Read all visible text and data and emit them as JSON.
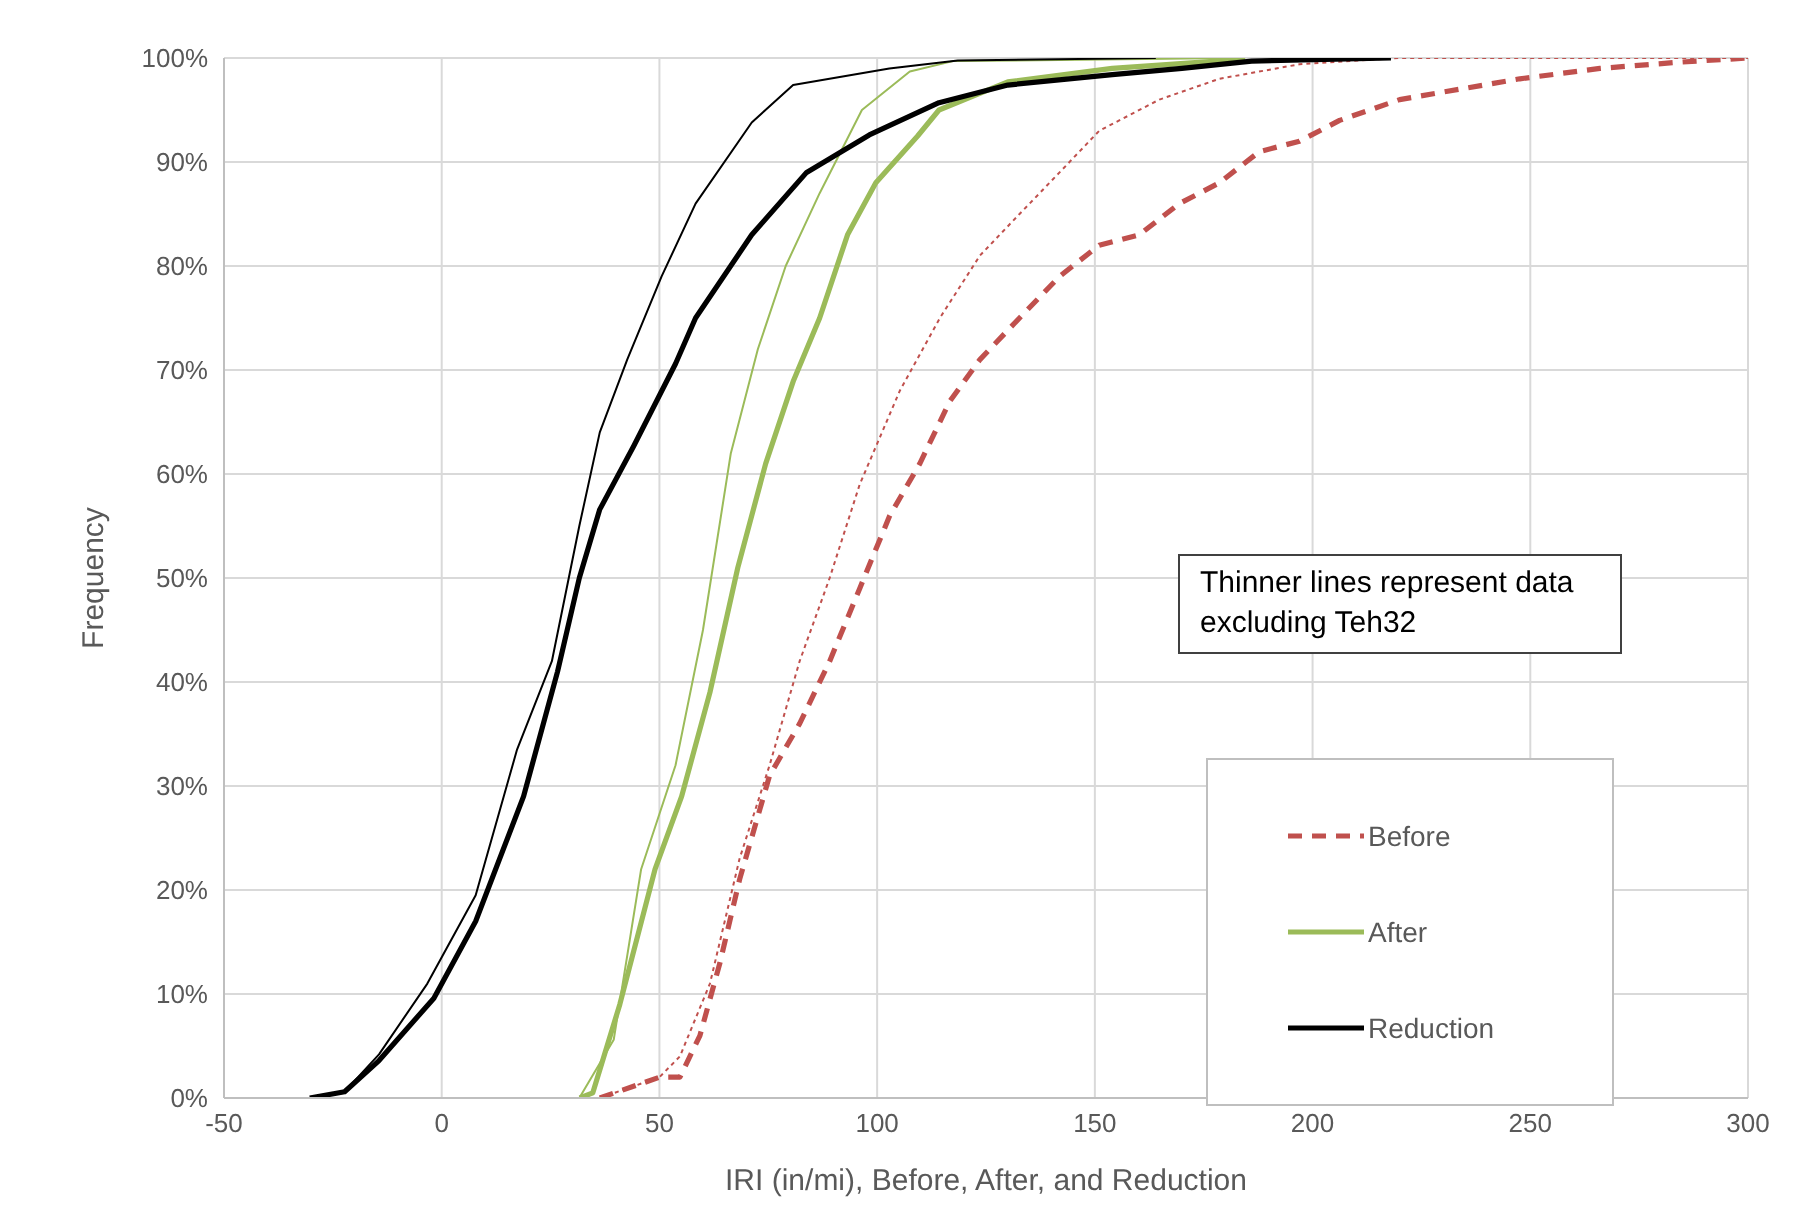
{
  "chart_data": {
    "type": "line",
    "xlabel": "IRI (in/mi), Before, After, and Reduction",
    "ylabel": "Frequency",
    "xlim": [
      -50,
      300
    ],
    "xticks": [
      -50,
      0,
      50,
      100,
      150,
      200,
      250,
      300
    ],
    "ylim": [
      0,
      100
    ],
    "yticks": [
      {
        "value": 0,
        "label": "0%"
      },
      {
        "value": 10,
        "label": "10%"
      },
      {
        "value": 20,
        "label": "20%"
      },
      {
        "value": 30,
        "label": "30%"
      },
      {
        "value": 40,
        "label": "40%"
      },
      {
        "value": 50,
        "label": "50%"
      },
      {
        "value": 60,
        "label": "60%"
      },
      {
        "value": 70,
        "label": "70%"
      },
      {
        "value": 80,
        "label": "80%"
      },
      {
        "value": 90,
        "label": "90%"
      },
      {
        "value": 100,
        "label": "100%"
      }
    ],
    "grid": true,
    "legend": "bottom right",
    "marker": "none",
    "annotations": [
      "Thinner lines represent data excluding Teh32"
    ],
    "series": [
      {
        "name": "Before",
        "color": "#c0504d",
        "line_style": "dashed",
        "x": [
          36.3,
          50,
          54.7,
          59.3,
          63.9,
          68.4,
          75.3,
          82.2,
          89.1,
          96,
          102.9,
          109.8,
          116.7,
          123.6,
          132.7,
          141.9,
          151,
          160.2,
          169.4,
          178.6,
          187.8,
          197,
          206.2,
          220,
          233.8,
          247.6,
          266,
          284.3,
          300
        ],
        "values": [
          0,
          2,
          2,
          6,
          13,
          21,
          31,
          36,
          42,
          49,
          56,
          61,
          67,
          71,
          75,
          79,
          82,
          83,
          86,
          88,
          91,
          92,
          94,
          96,
          97,
          98,
          99,
          99.6,
          100
        ]
      },
      {
        "color": "#c0504d",
        "line_style": "dotted",
        "x": [
          36.3,
          50,
          54.7,
          61.6,
          68.4,
          75.3,
          82.2,
          89.1,
          96,
          105.2,
          114.4,
          123.6,
          132.7,
          141.9,
          151,
          164.8,
          178.6,
          197,
          220,
          300
        ],
        "values": [
          0,
          2,
          4,
          11,
          23,
          32,
          42,
          50,
          59,
          68,
          75,
          81,
          85,
          89,
          93,
          96,
          98,
          99.4,
          100,
          100
        ]
      },
      {
        "name": "After",
        "color": "#9bbb59",
        "line_style": "solid",
        "x": [
          31.7,
          34.7,
          40.9,
          49,
          55.1,
          61.6,
          68,
          74.4,
          80.8,
          86.8,
          93.2,
          99.7,
          109.3,
          114.2,
          130,
          154,
          178,
          184.5
        ],
        "values": [
          0,
          0.5,
          9,
          22,
          29,
          39,
          51,
          61,
          69,
          75,
          83,
          88,
          92.5,
          95,
          97.7,
          99,
          99.7,
          100
        ]
      },
      {
        "color": "#9bbb59",
        "line_style": "solid",
        "x": [
          31.6,
          39.5,
          45.8,
          53.7,
          60,
          66.4,
          72.6,
          79,
          86.8,
          96.5,
          107.5,
          117.4,
          181.3
        ],
        "values": [
          0,
          5.6,
          22,
          32,
          45,
          62,
          72,
          80,
          87,
          95,
          98.7,
          99.7,
          100
        ]
      },
      {
        "name": "Reduction",
        "color": "#000000",
        "line_style": "solid",
        "x": [
          -30.3,
          -22.3,
          -14.4,
          -1.8,
          7.8,
          18.8,
          26.6,
          31.6,
          36.3,
          44.1,
          53.7,
          58.3,
          71.2,
          83.8,
          98.2,
          114.2,
          130,
          154,
          170,
          186,
          218
        ],
        "values": [
          0,
          0.6,
          3.6,
          9.6,
          17,
          29,
          41,
          50,
          56.6,
          62.7,
          70.6,
          75,
          83,
          89,
          92.6,
          95.7,
          97.4,
          98.4,
          99,
          99.7,
          100
        ]
      },
      {
        "color": "#000000",
        "line_style": "solid",
        "x": [
          -30.3,
          -22.3,
          -14.4,
          -3.3,
          7.8,
          17.3,
          25.3,
          31.6,
          36.3,
          42.6,
          50.5,
          58.3,
          71.2,
          80.7,
          102.8,
          118.5,
          164
        ],
        "values": [
          0,
          0.6,
          4.2,
          11,
          19.5,
          33.5,
          42,
          55,
          64,
          71,
          79,
          86,
          93.8,
          97.4,
          99,
          99.75,
          100
        ]
      }
    ]
  }
}
